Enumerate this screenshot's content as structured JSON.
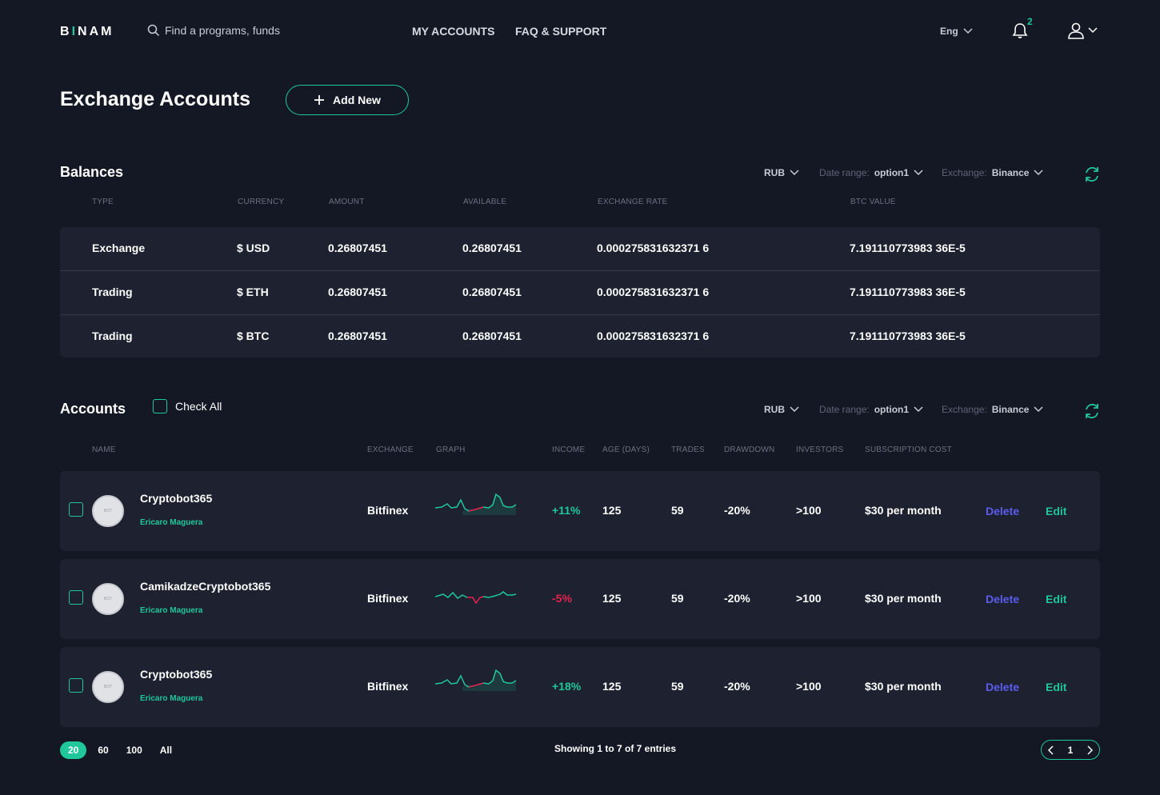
{
  "header": {
    "logo_left": "B",
    "logo_dot": "I",
    "logo_right": "NAM",
    "search_placeholder": "Find a programs, funds",
    "nav": [
      "MY ACCOUNTS",
      "FAQ & SUPPORT"
    ],
    "language": "Eng",
    "notifications_count": "2",
    "accent_color": "#1fc79a"
  },
  "page": {
    "title": "Exchange Accounts",
    "add_label": "Add New"
  },
  "balances": {
    "title": "Balances",
    "filters": {
      "currency": "RUB",
      "date_label": "Date range:",
      "date_value": "option1",
      "exchange_label": "Exchange:",
      "exchange_value": "Binance"
    },
    "columns": [
      "TYPE",
      "CURRENCY",
      "AMOUNT",
      "AVAILABLE",
      "EXCHANGE RATE",
      "BTC VALUE"
    ],
    "rows": [
      {
        "type": "Exchange",
        "currency": "$ USD",
        "amount": "0.26807451",
        "available": "0.26807451",
        "rate": "0.000275831632371 6",
        "btc": "7.191110773983 36E-5"
      },
      {
        "type": "Trading",
        "currency": "$ ETH",
        "amount": "0.26807451",
        "available": "0.26807451",
        "rate": "0.000275831632371 6",
        "btc": "7.191110773983 36E-5"
      },
      {
        "type": "Trading",
        "currency": "$ BTC",
        "amount": "0.26807451",
        "available": "0.26807451",
        "rate": "0.000275831632371 6",
        "btc": "7.191110773983 36E-5"
      }
    ]
  },
  "accounts": {
    "title": "Accounts",
    "check_all": "Check All",
    "filters": {
      "currency": "RUB",
      "date_label": "Date range:",
      "date_value": "option1",
      "exchange_label": "Exchange:",
      "exchange_value": "Binance"
    },
    "columns": [
      "NAME",
      "EXCHANGE",
      "GRAPH",
      "INCOME",
      "AGE (DAYS)",
      "TRADES",
      "DRAWDOWN",
      "INVESTORS",
      "SUBSCRIPTION COST"
    ],
    "rows": [
      {
        "name": "Cryptobot365",
        "owner": "Ericaro Maguera",
        "exchange": "Bitfinex",
        "income": "+11%",
        "income_dir": "up",
        "age": "125",
        "trades": "59",
        "drawdown": "-20%",
        "investors": ">100",
        "cost": "$30 per month",
        "delete": "Delete",
        "edit": "Edit"
      },
      {
        "name": "CamikadzeCryptobot365",
        "owner": "Ericaro Maguera",
        "exchange": "Bitfinex",
        "income": "-5%",
        "income_dir": "down",
        "age": "125",
        "trades": "59",
        "drawdown": "-20%",
        "investors": ">100",
        "cost": "$30 per month",
        "delete": "Delete",
        "edit": "Edit"
      },
      {
        "name": "Cryptobot365",
        "owner": "Ericaro Maguera",
        "exchange": "Bitfinex",
        "income": "+18%",
        "income_dir": "up",
        "age": "125",
        "trades": "59",
        "drawdown": "-20%",
        "investors": ">100",
        "cost": "$30 per month",
        "delete": "Delete",
        "edit": "Edit"
      }
    ]
  },
  "pagination": {
    "sizes": [
      "20",
      "60",
      "100",
      "All"
    ],
    "active_size": "20",
    "showing": "Showing 1 to 7 of 7 entries",
    "current_page": "1"
  }
}
